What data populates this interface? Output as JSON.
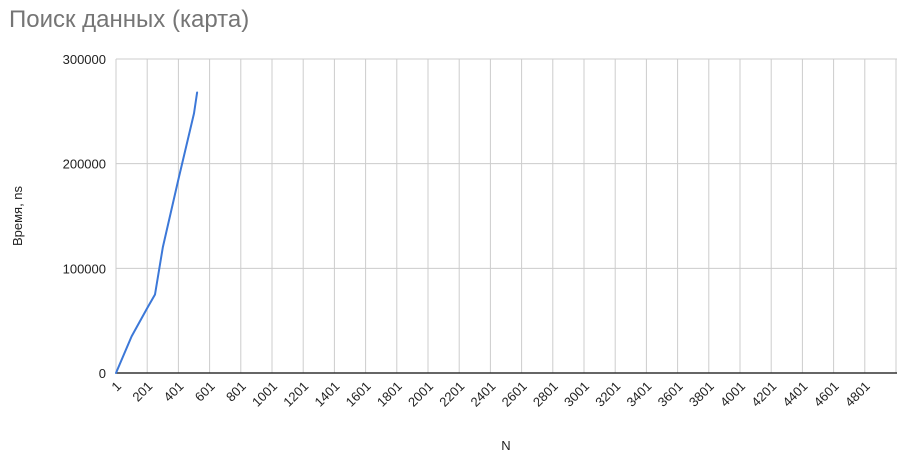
{
  "chart_data": {
    "type": "line",
    "title": "Поиск данных (карта)",
    "xlabel": "N",
    "ylabel": "Время, ns",
    "x_ticks": [
      "1",
      "201",
      "401",
      "601",
      "801",
      "1001",
      "1201",
      "1401",
      "1601",
      "1801",
      "2001",
      "2201",
      "2401",
      "2601",
      "2801",
      "3001",
      "3201",
      "3401",
      "3601",
      "3801",
      "4001",
      "4201",
      "4401",
      "4601",
      "4801"
    ],
    "y_ticks": [
      "0",
      "100000",
      "200000",
      "300000"
    ],
    "ylim": [
      0,
      300000
    ],
    "xlim": [
      1,
      5001
    ],
    "grid": true,
    "legend": "none",
    "series": [
      {
        "color": "#3c78d8",
        "x": [
          1,
          101,
          201,
          251,
          301,
          401,
          501,
          521
        ],
        "y": [
          0,
          35000,
          62000,
          75000,
          120000,
          185000,
          248000,
          268000
        ]
      }
    ]
  }
}
